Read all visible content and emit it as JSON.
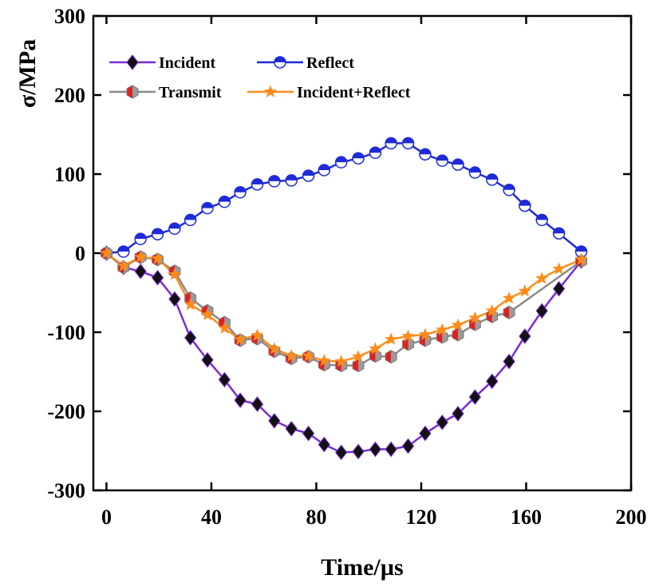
{
  "chart_data": {
    "type": "line",
    "xlabel": "Time/µs",
    "ylabel": "σ/MPa",
    "xlim": [
      -5,
      200
    ],
    "ylim": [
      -300,
      300
    ],
    "xticks": [
      0,
      40,
      80,
      120,
      160,
      200
    ],
    "yticks": [
      -300,
      -200,
      -100,
      0,
      100,
      200,
      300
    ],
    "legend_position": "top-left",
    "series": [
      {
        "name": "Incident",
        "color": "#7a2bd6",
        "marker": "diamond",
        "marker_color": "#111111",
        "x": [
          0,
          6.5,
          13,
          19.5,
          26,
          32,
          38.5,
          45,
          51,
          57.5,
          64,
          70.5,
          77,
          83,
          89.5,
          96,
          102.5,
          108.5,
          115,
          121.5,
          128,
          134,
          140.5,
          147,
          153.5,
          159.5,
          166,
          172.5,
          181
        ],
        "values": [
          0,
          -18,
          -23,
          -31,
          -58,
          -107,
          -135,
          -160,
          -186,
          -191,
          -212,
          -222,
          -228,
          -242,
          -252,
          -251,
          -248,
          -248,
          -244,
          -228,
          -214,
          -203,
          -182,
          -162,
          -137,
          -105,
          -73,
          -45,
          -10
        ]
      },
      {
        "name": "Reflect",
        "color": "#1f2bd6",
        "marker": "half-circle",
        "marker_color": "#1f2bd6",
        "x": [
          0,
          6.5,
          13,
          19.5,
          26,
          32,
          38.5,
          45,
          51,
          57.5,
          64,
          70.5,
          77,
          83,
          89.5,
          96,
          102.5,
          108.5,
          115,
          121.5,
          128,
          134,
          140.5,
          147,
          153.5,
          159.5,
          166,
          172.5,
          181
        ],
        "values": [
          0,
          2,
          18,
          24,
          31,
          42,
          57,
          65,
          77,
          87,
          91,
          92,
          98,
          105,
          115,
          120,
          127,
          139,
          139,
          125,
          117,
          112,
          102,
          93,
          80,
          60,
          42,
          25,
          2
        ]
      },
      {
        "name": "Transmit",
        "color": "#8a8a8a",
        "marker": "hexagon-split",
        "marker_color": "#e02020",
        "x": [
          0,
          6.5,
          13,
          19.5,
          26,
          32,
          38.5,
          45,
          51,
          57.5,
          64,
          70.5,
          77,
          83,
          89.5,
          96,
          102.5,
          108.5,
          115,
          121.5,
          128,
          134,
          140.5,
          147,
          153.5,
          181
        ],
        "values": [
          0,
          -18,
          -5,
          -8,
          -23,
          -57,
          -73,
          -88,
          -110,
          -108,
          -124,
          -133,
          -131,
          -141,
          -142,
          -142,
          -130,
          -131,
          -115,
          -110,
          -106,
          -103,
          -90,
          -80,
          -75,
          -10
        ]
      },
      {
        "name": "Incident+Reflect",
        "color": "#ff8c1a",
        "marker": "star",
        "marker_color": "#ff8c1a",
        "x": [
          0,
          6.5,
          13,
          19.5,
          26,
          32,
          38.5,
          45,
          51,
          57.5,
          64,
          70.5,
          77,
          83,
          89.5,
          96,
          102.5,
          108.5,
          115,
          121.5,
          128,
          134,
          140.5,
          147,
          153.5,
          159.5,
          166,
          172.5,
          181
        ],
        "values": [
          0,
          -16,
          -5,
          -7,
          -27,
          -65,
          -78,
          -95,
          -109,
          -104,
          -121,
          -130,
          -130,
          -136,
          -137,
          -131,
          -121,
          -109,
          -105,
          -103,
          -97,
          -91,
          -82,
          -73,
          -57,
          -48,
          -32,
          -20,
          -8
        ]
      }
    ]
  }
}
